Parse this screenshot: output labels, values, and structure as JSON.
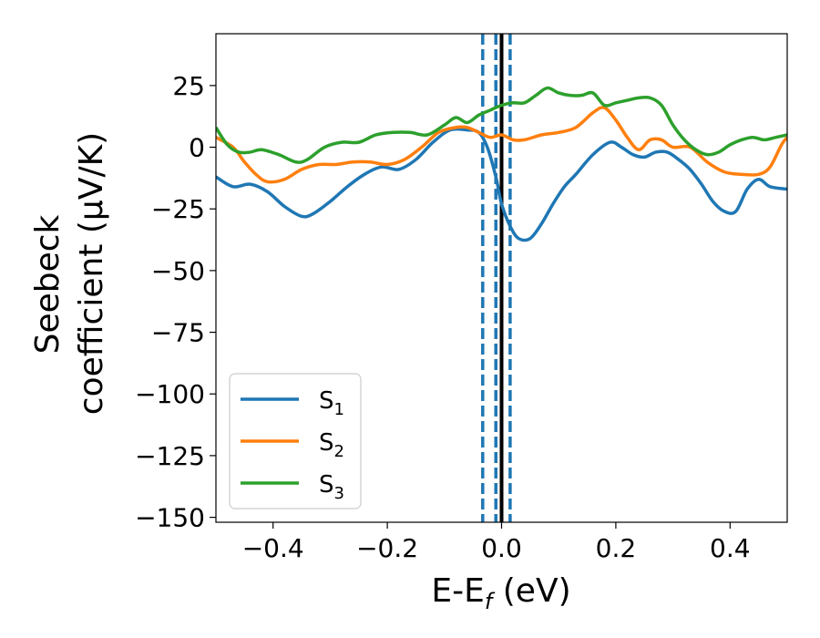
{
  "chart_data": {
    "type": "line",
    "xlabel_main": "E-E",
    "xlabel_sub": "f",
    "xlabel_unit": " (eV)",
    "ylabel_line1": "Seebeck",
    "ylabel_line2": "coefficient  (μV/K)",
    "xlim": [
      -0.5,
      0.5
    ],
    "ylim": [
      -152,
      46
    ],
    "x_ticks": [
      -0.4,
      -0.2,
      0.0,
      0.2,
      0.4
    ],
    "x_tick_labels": [
      "−0.4",
      "−0.2",
      "0.0",
      "0.2",
      "0.4"
    ],
    "y_ticks": [
      25,
      0,
      -25,
      -50,
      -75,
      -100,
      -125,
      -150
    ],
    "y_tick_labels": [
      "25",
      "0",
      "−25",
      "−50",
      "−75",
      "−100",
      "−125",
      "−150"
    ],
    "grid": false,
    "legend_position": "lower-left",
    "vertical_lines": [
      {
        "x": -0.033,
        "style": "dashed",
        "color": "#1f77b4"
      },
      {
        "x": -0.01,
        "style": "dashed",
        "color": "#1f77b4"
      },
      {
        "x": 0.015,
        "style": "dashed",
        "color": "#1f77b4"
      },
      {
        "x": 0.0,
        "style": "solid",
        "color": "#000000"
      }
    ],
    "series": [
      {
        "name": "S",
        "name_sub": "1",
        "color": "#1f77b4",
        "x": [
          -0.5,
          -0.47,
          -0.44,
          -0.41,
          -0.38,
          -0.35,
          -0.33,
          -0.3,
          -0.27,
          -0.24,
          -0.21,
          -0.18,
          -0.15,
          -0.12,
          -0.09,
          -0.06,
          -0.04,
          -0.025,
          -0.01,
          0.0,
          0.015,
          0.03,
          0.05,
          0.07,
          0.09,
          0.11,
          0.13,
          0.16,
          0.19,
          0.21,
          0.23,
          0.25,
          0.27,
          0.29,
          0.31,
          0.33,
          0.35,
          0.37,
          0.39,
          0.41,
          0.43,
          0.45,
          0.47,
          0.5
        ],
        "y": [
          -12,
          -16,
          -15,
          -18,
          -24,
          -28,
          -27,
          -22,
          -16,
          -11,
          -8,
          -9,
          -5,
          2,
          7,
          7,
          6,
          0,
          -12,
          -23,
          -32,
          -37,
          -37,
          -31,
          -23,
          -16,
          -11,
          -3,
          2,
          0,
          -3,
          -4,
          -2,
          -2,
          -5,
          -9,
          -15,
          -22,
          -26,
          -26,
          -17,
          -13,
          -16,
          -17
        ]
      },
      {
        "name": "S",
        "name_sub": "2",
        "color": "#ff7f0e",
        "x": [
          -0.5,
          -0.47,
          -0.45,
          -0.43,
          -0.41,
          -0.38,
          -0.35,
          -0.32,
          -0.29,
          -0.26,
          -0.23,
          -0.2,
          -0.17,
          -0.14,
          -0.11,
          -0.08,
          -0.06,
          -0.04,
          -0.02,
          0.0,
          0.02,
          0.04,
          0.07,
          0.1,
          0.13,
          0.16,
          0.18,
          0.2,
          0.22,
          0.24,
          0.26,
          0.28,
          0.3,
          0.33,
          0.36,
          0.39,
          0.42,
          0.45,
          0.47,
          0.49,
          0.5
        ],
        "y": [
          4,
          0,
          -6,
          -11,
          -14,
          -13,
          -9,
          -7,
          -7,
          -6,
          -6,
          -7,
          -5,
          0,
          6,
          8,
          8,
          6,
          4,
          5,
          3,
          3,
          5,
          6,
          8,
          14,
          16,
          11,
          4,
          -1,
          3,
          3,
          0,
          0,
          -6,
          -10,
          -11,
          -11,
          -8,
          1,
          4
        ]
      },
      {
        "name": "S",
        "name_sub": "3",
        "color": "#2ca02c",
        "x": [
          -0.5,
          -0.48,
          -0.46,
          -0.44,
          -0.42,
          -0.39,
          -0.36,
          -0.34,
          -0.31,
          -0.28,
          -0.25,
          -0.22,
          -0.19,
          -0.16,
          -0.13,
          -0.1,
          -0.08,
          -0.06,
          -0.04,
          -0.02,
          0.0,
          0.02,
          0.04,
          0.06,
          0.08,
          0.1,
          0.12,
          0.14,
          0.16,
          0.18,
          0.2,
          0.22,
          0.24,
          0.26,
          0.28,
          0.3,
          0.32,
          0.34,
          0.36,
          0.38,
          0.4,
          0.42,
          0.44,
          0.46,
          0.48,
          0.5
        ],
        "y": [
          8,
          1,
          -2,
          -2,
          -1,
          -3,
          -6,
          -5,
          0,
          2,
          2,
          5,
          6,
          6,
          5,
          9,
          12,
          10,
          13,
          15,
          17,
          18,
          18,
          21,
          24,
          22,
          21,
          21,
          22,
          17,
          18,
          19,
          20,
          20,
          17,
          9,
          3,
          -1,
          -3,
          -2,
          1,
          3,
          4,
          3,
          4,
          5
        ]
      }
    ]
  }
}
